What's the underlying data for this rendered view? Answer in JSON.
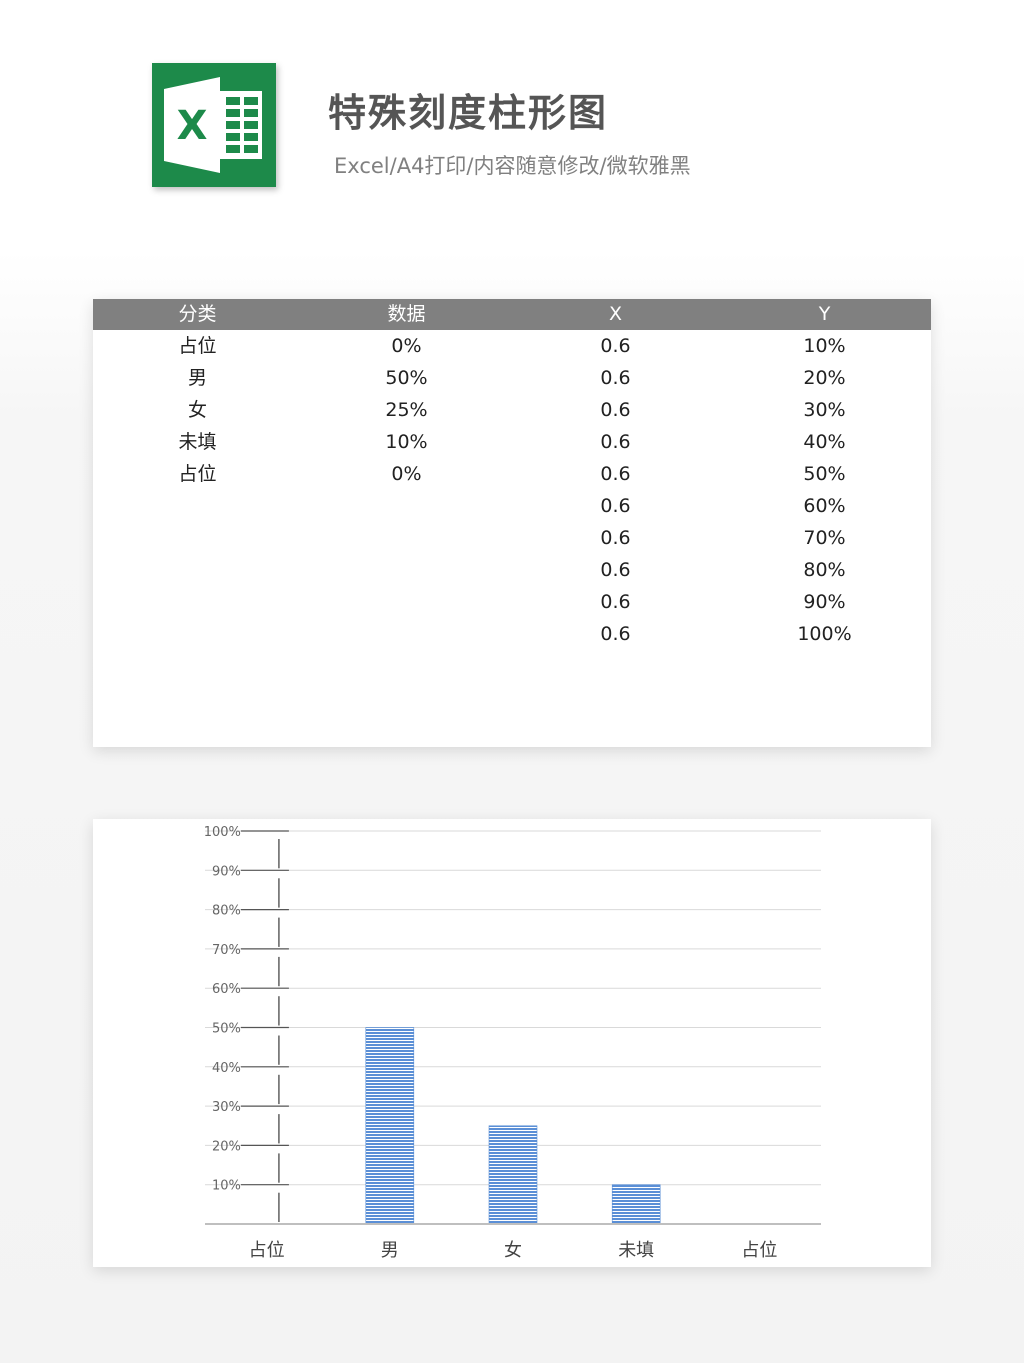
{
  "header": {
    "title": "特殊刻度柱形图",
    "subtitle": "Excel/A4打印/内容随意修改/微软雅黑",
    "logo_icon": "excel-logo-icon",
    "logo_letter": "X",
    "brand_color": "#1d8a4a"
  },
  "table": {
    "columns": [
      "分类",
      "数据",
      "X",
      "Y"
    ],
    "rows": [
      [
        "占位",
        "0%",
        "0.6",
        "10%"
      ],
      [
        "男",
        "50%",
        "0.6",
        "20%"
      ],
      [
        "女",
        "25%",
        "0.6",
        "30%"
      ],
      [
        "未填",
        "10%",
        "0.6",
        "40%"
      ],
      [
        "占位",
        "0%",
        "0.6",
        "50%"
      ],
      [
        "",
        "",
        "0.6",
        "60%"
      ],
      [
        "",
        "",
        "0.6",
        "70%"
      ],
      [
        "",
        "",
        "0.6",
        "80%"
      ],
      [
        "",
        "",
        "0.6",
        "90%"
      ],
      [
        "",
        "",
        "0.6",
        "100%"
      ]
    ],
    "header_color": "#808080"
  },
  "chart_data": {
    "type": "bar",
    "categories": [
      "占位",
      "男",
      "女",
      "未填",
      "占位"
    ],
    "values": [
      0,
      50,
      25,
      10,
      0
    ],
    "ylim": [
      0,
      100
    ],
    "yticks": [
      "10%",
      "20%",
      "30%",
      "40%",
      "50%",
      "60%",
      "70%",
      "80%",
      "90%",
      "100%"
    ],
    "scatter_x": 0.6,
    "scatter_y": [
      10,
      20,
      30,
      40,
      50,
      60,
      70,
      80,
      90,
      100
    ],
    "grid": true,
    "bar_color": "#5b8fd6",
    "xlabel": "",
    "ylabel": ""
  }
}
